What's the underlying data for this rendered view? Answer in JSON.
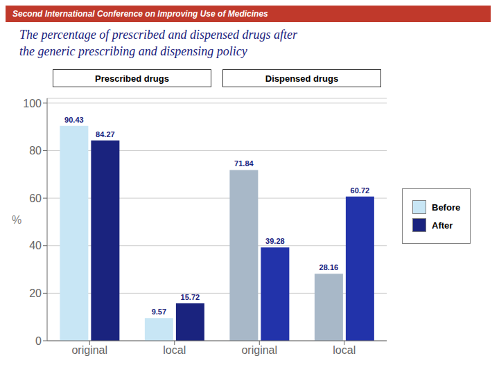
{
  "chart_data": {
    "type": "bar",
    "title": "The percentage of prescribed and dispensed drugs after\nthe generic prescribing and dispensing policy",
    "y_label": "%",
    "annotations": [
      "Second International Conference on Improving Use of Medicines",
      "Prescribed drugs",
      "Dispensed drugs"
    ],
    "categories": [
      "original",
      "local",
      "original",
      "local"
    ],
    "series": [
      {
        "name": "Before",
        "colors": [
          "#c8e6f5",
          "#c8e6f5",
          "#a8b8c8",
          "#a8b8c8"
        ],
        "values": [
          90.43,
          9.57,
          71.84,
          28.16
        ]
      },
      {
        "name": "After",
        "colors": [
          "#1a237e",
          "#1a237e",
          "#2233aa",
          "#2233aa"
        ],
        "values": [
          84.27,
          15.72,
          39.28,
          60.72
        ]
      }
    ],
    "ylim": [
      0,
      102
    ],
    "yticks": [
      0,
      20,
      40,
      60,
      80,
      100
    ],
    "grid": true,
    "legend": "right",
    "data_labels": true
  }
}
